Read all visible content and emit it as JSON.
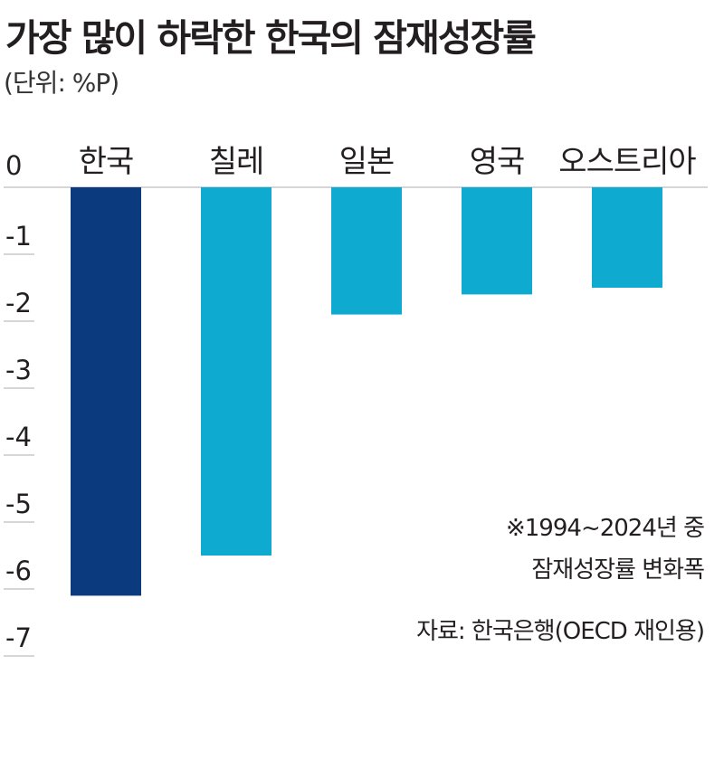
{
  "title": "가장 많이 하락한 한국의 잠재성장률",
  "unit": "(단위: %P)",
  "note_line1": "※1994~2024년 중",
  "note_line2": "잠재성장률 변화폭",
  "source": "자료: 한국은행(OECD 재인용)",
  "colors": {
    "highlight": "#0b3a7e",
    "bar": "#0eaad0",
    "axis": "#c8c8c8",
    "text": "#231f20"
  },
  "chart_data": {
    "type": "bar",
    "title": "가장 많이 하락한 한국의 잠재성장률",
    "ylabel": "(단위: %P)",
    "categories": [
      "한국",
      "칠레",
      "일본",
      "영국",
      "오스트리아"
    ],
    "values": [
      -6.1,
      -5.5,
      -1.9,
      -1.6,
      -1.5
    ],
    "highlight_index": 0,
    "ylim": [
      -7,
      0
    ],
    "yticks": [
      0,
      -1,
      -2,
      -3,
      -4,
      -5,
      -6,
      -7
    ],
    "ytick_labels": [
      "0",
      "-1",
      "-2",
      "-3",
      "-4",
      "-5",
      "-6",
      "-7"
    ],
    "grid": false,
    "legend": "none"
  }
}
